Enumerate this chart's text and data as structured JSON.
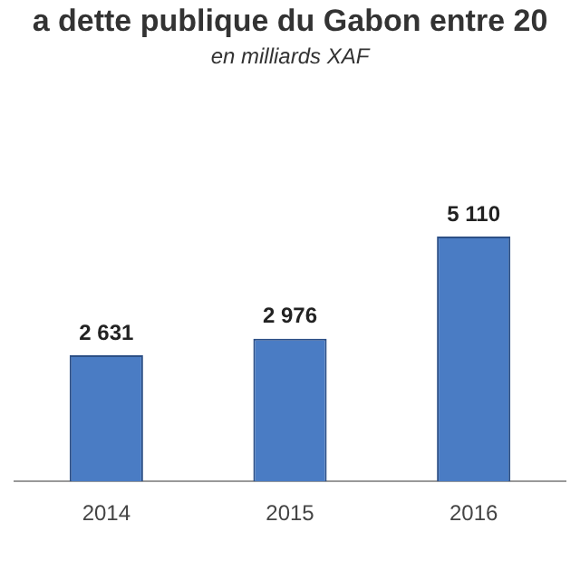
{
  "chart_data": {
    "type": "bar",
    "title": "a dette publique du Gabon entre 20",
    "subtitle": "en milliards XAF",
    "categories": [
      "2014",
      "2015",
      "2016"
    ],
    "values": [
      2631,
      2976,
      5110
    ],
    "color": "#4a7cc4",
    "data_labels": true,
    "grid": false,
    "legend": false
  }
}
